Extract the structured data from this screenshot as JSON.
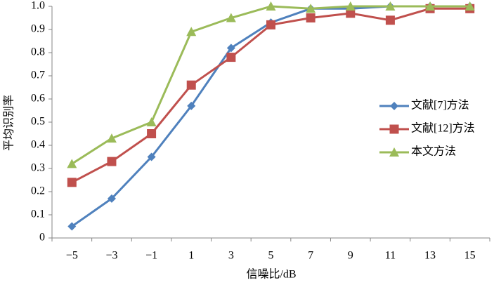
{
  "chart_data": {
    "type": "line",
    "xlabel": "信噪比/dB",
    "ylabel": "平均识别率",
    "categories": [
      "−5",
      "−3",
      "−1",
      "1",
      "3",
      "5",
      "7",
      "9",
      "11",
      "13",
      "15"
    ],
    "series": [
      {
        "name": "文献[7]方法",
        "color": "#4f81bd",
        "marker": "diamond",
        "values": [
          0.05,
          0.17,
          0.35,
          0.57,
          0.82,
          0.93,
          0.99,
          0.99,
          1.0,
          1.0,
          1.0
        ]
      },
      {
        "name": "文献[12]方法",
        "color": "#c0504d",
        "marker": "square",
        "values": [
          0.24,
          0.33,
          0.45,
          0.66,
          0.78,
          0.92,
          0.95,
          0.97,
          0.94,
          0.99,
          0.99
        ]
      },
      {
        "name": "本文方法",
        "color": "#9bbb59",
        "marker": "triangle",
        "values": [
          0.32,
          0.43,
          0.5,
          0.89,
          0.95,
          1.0,
          0.99,
          1.0,
          1.0,
          1.0,
          1.0
        ]
      }
    ],
    "ylim": [
      0,
      1
    ],
    "yticks": [
      0,
      0.1,
      0.2,
      0.3,
      0.4,
      0.5,
      0.6,
      0.7,
      0.8,
      0.9,
      {
        "value": 1,
        "label": "1.0"
      }
    ],
    "legend": "right"
  }
}
